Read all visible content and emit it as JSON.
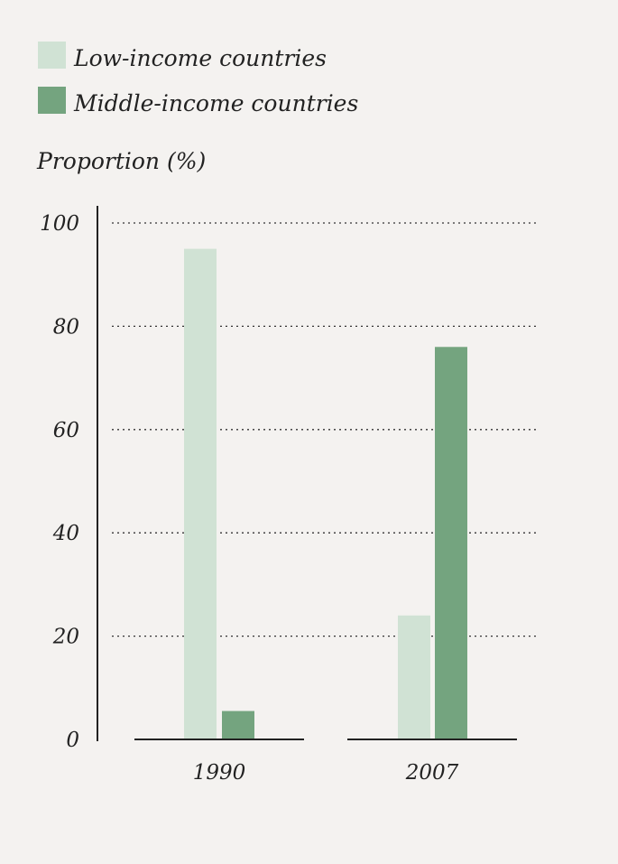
{
  "legend": {
    "items": [
      {
        "label": "Low-income countries",
        "color": "#d0e2d4"
      },
      {
        "label": "Middle-income countries",
        "color": "#74a47f"
      }
    ]
  },
  "chart_data": {
    "type": "bar",
    "categories": [
      "1990",
      "2007"
    ],
    "series": [
      {
        "name": "Low-income countries",
        "values": [
          95,
          24
        ],
        "color": "#d0e2d4"
      },
      {
        "name": "Middle-income countries",
        "values": [
          5.5,
          76
        ],
        "color": "#74a47f"
      }
    ],
    "ylabel": "Proportion (%)",
    "ylim": [
      0,
      100
    ],
    "yticks": [
      "0",
      "20",
      "40",
      "60",
      "80",
      "100"
    ],
    "grid": true,
    "legend_position": "top-left"
  }
}
